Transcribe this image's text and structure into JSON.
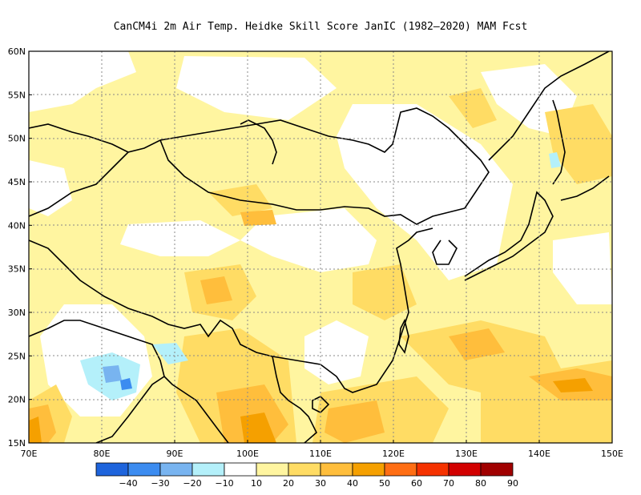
{
  "title": "CanCM4i  2m Air Temp. Heidke Skill Score JanIC (1982–2020) MAM Fcst",
  "map": {
    "lat_labels": [
      "15N",
      "20N",
      "25N",
      "30N",
      "35N",
      "40N",
      "45N",
      "50N",
      "55N",
      "60N"
    ],
    "lon_labels": [
      "70E",
      "80E",
      "90E",
      "100E",
      "110E",
      "120E",
      "130E",
      "140E",
      "150E"
    ],
    "lon_range": [
      70,
      150
    ],
    "lat_range": [
      15,
      60
    ]
  },
  "colorbar": {
    "colors": [
      "#1e64dc",
      "#3c8cf0",
      "#78b4f0",
      "#b4f0fa",
      "#ffffff",
      "#fff5a0",
      "#ffdc64",
      "#ffbe3c",
      "#f5a000",
      "#ff6e14",
      "#f53200",
      "#d20000",
      "#a00000"
    ],
    "labels": [
      "−40",
      "−30",
      "−20",
      "−10",
      "10",
      "20",
      "30",
      "40",
      "50",
      "60",
      "70",
      "80",
      "90"
    ]
  }
}
